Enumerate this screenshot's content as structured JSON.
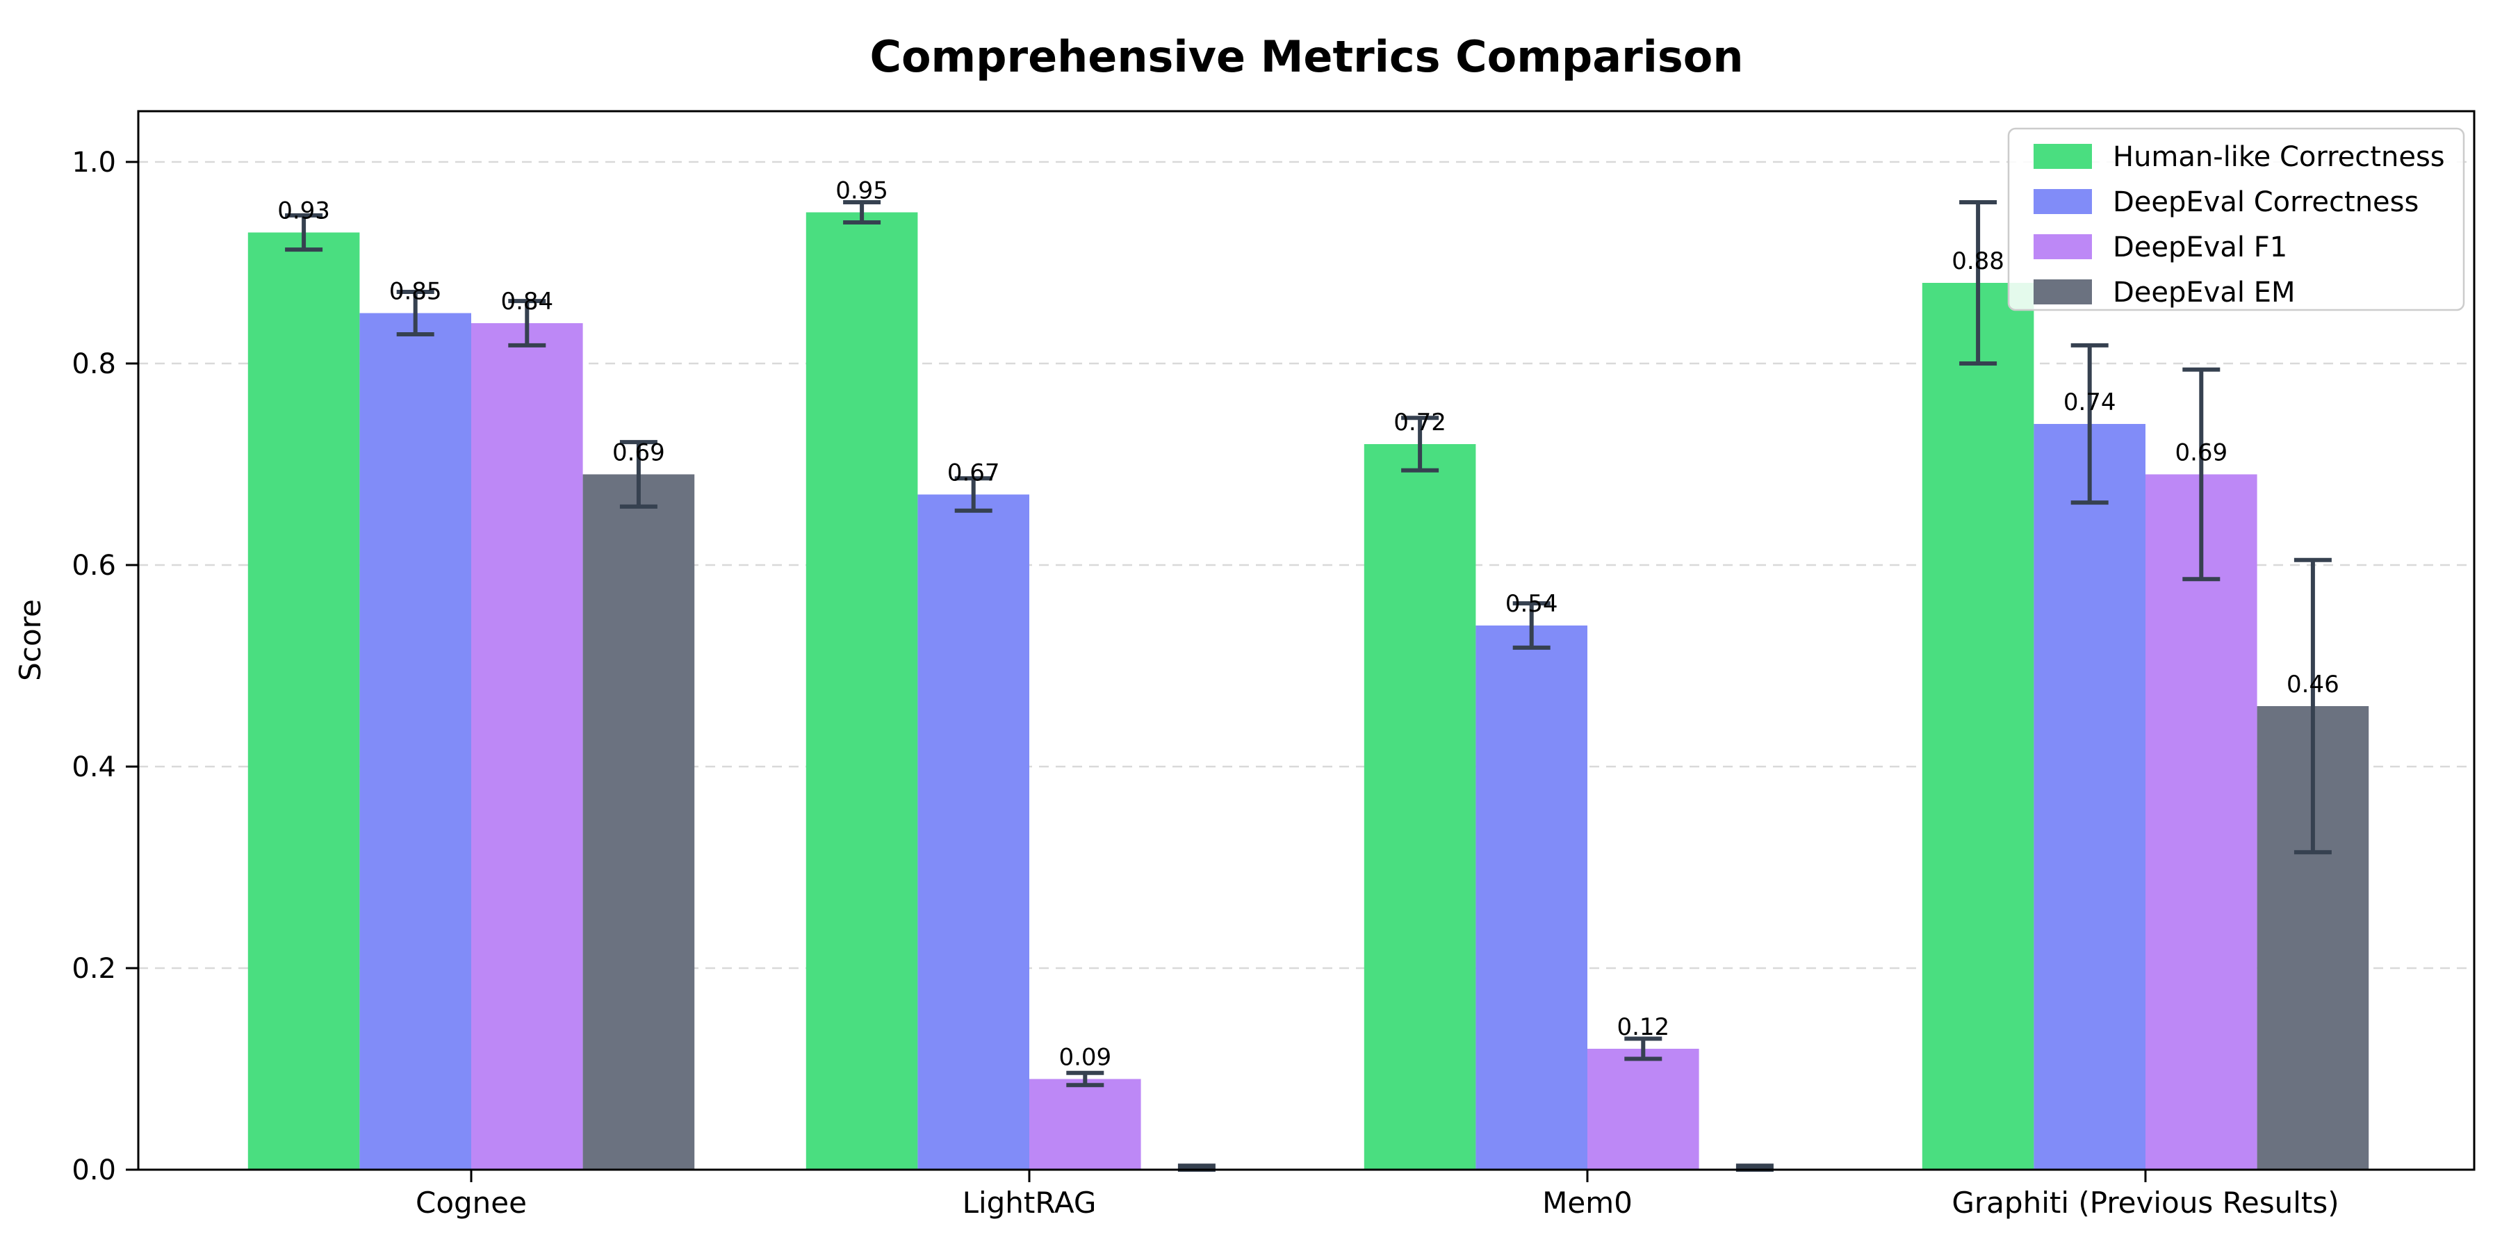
{
  "chart_data": {
    "type": "bar",
    "title": "Comprehensive Metrics Comparison",
    "ylabel": "Score",
    "xlabel": "",
    "categories": [
      "Cognee",
      "LightRAG",
      "Mem0",
      "Graphiti (Previous Results)"
    ],
    "series": [
      {
        "name": "Human-like Correctness",
        "color": "#4ade80",
        "values": [
          0.93,
          0.95,
          0.72,
          0.88
        ],
        "errors": [
          0.017,
          0.01,
          0.026,
          0.08
        ],
        "labels": [
          "0.93",
          "0.95",
          "0.72",
          "0.88"
        ]
      },
      {
        "name": "DeepEval Correctness",
        "color": "#818cf8",
        "values": [
          0.85,
          0.67,
          0.54,
          0.74
        ],
        "errors": [
          0.021,
          0.016,
          0.022,
          0.078
        ],
        "labels": [
          "0.85",
          "0.67",
          "0.54",
          "0.74"
        ]
      },
      {
        "name": "DeepEval F1",
        "color": "#bd88f6",
        "values": [
          0.84,
          0.09,
          0.12,
          0.69
        ],
        "errors": [
          0.022,
          0.006,
          0.01,
          0.104
        ],
        "labels": [
          "0.84",
          "0.09",
          "0.12",
          "0.69"
        ]
      },
      {
        "name": "DeepEval EM",
        "color": "#6b7280",
        "values": [
          0.69,
          0.0,
          0.0,
          0.46
        ],
        "errors": [
          0.032,
          0.004,
          0.004,
          0.145
        ],
        "labels": [
          "0.69",
          "",
          "",
          "0.46"
        ]
      }
    ],
    "yticks": [
      0.0,
      0.2,
      0.4,
      0.6,
      0.8,
      1.0
    ],
    "ytick_labels": [
      "0.0",
      "0.2",
      "0.4",
      "0.6",
      "0.8",
      "1.0"
    ],
    "ylim": [
      0.0,
      1.05
    ],
    "grid": "horizontal dashed",
    "grid_color": "#d9d9d9",
    "error_bar_color": "#364150",
    "axis_color": "#000000",
    "legend_position": "upper right",
    "legend_border_color": "#cccccc",
    "background_color": "#ffffff"
  }
}
